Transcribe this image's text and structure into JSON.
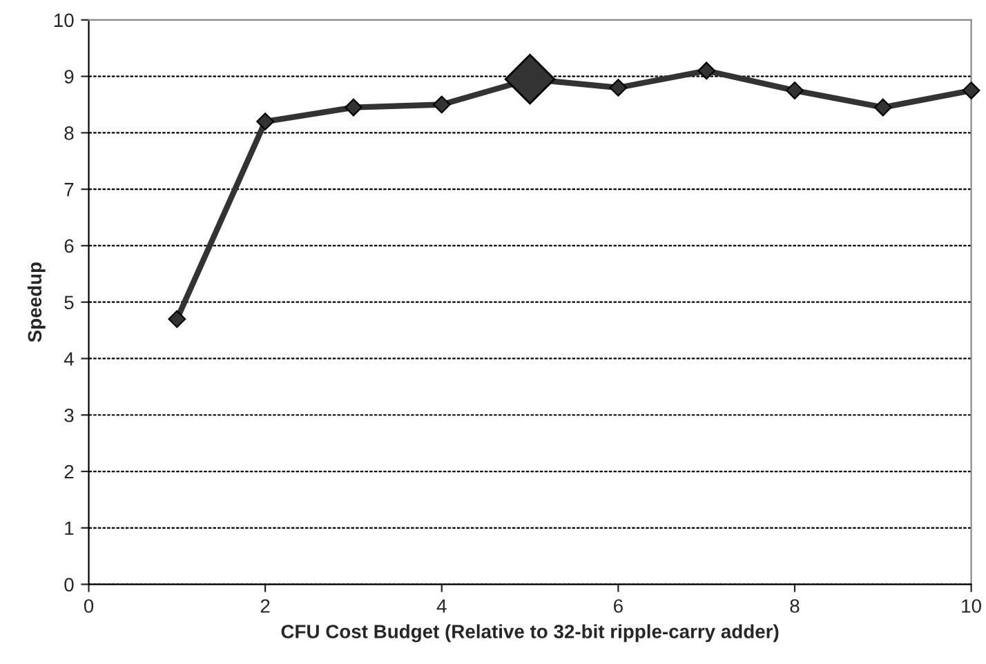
{
  "chart_data": {
    "type": "line",
    "xlabel": "CFU Cost Budget (Relative to 32-bit ripple-carry adder)",
    "ylabel": "Speedup",
    "xlim": [
      0,
      10
    ],
    "xticks": [
      0,
      2,
      4,
      6,
      8,
      10
    ],
    "ylim": [
      0,
      10
    ],
    "yticks": [
      0,
      1,
      2,
      3,
      4,
      5,
      6,
      7,
      8,
      9,
      10
    ],
    "grid": "y",
    "marker": "diamond",
    "line_style": "solid",
    "series": [
      {
        "color": "#333333",
        "x": [
          1,
          2,
          3,
          4,
          5,
          6,
          7,
          8,
          9,
          10
        ],
        "values": [
          4.7,
          8.2,
          8.45,
          8.5,
          8.95,
          8.8,
          9.1,
          8.75,
          8.45,
          8.75
        ]
      },
      {
        "type": "scatter",
        "color": "#333333",
        "x": [
          5
        ],
        "values": [
          8.95
        ]
      }
    ]
  }
}
